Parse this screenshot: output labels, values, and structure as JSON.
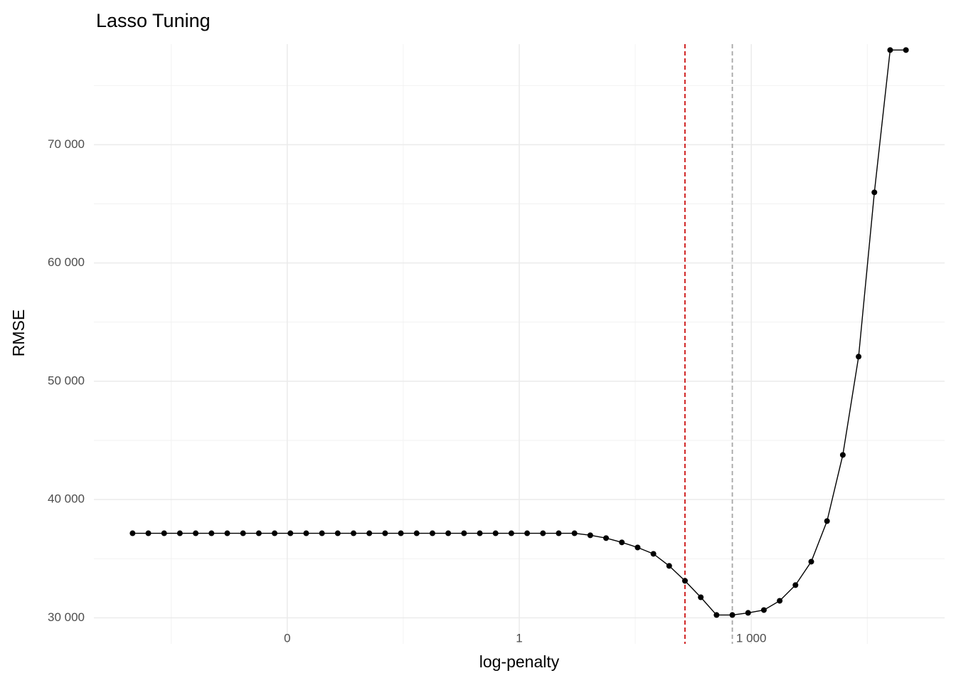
{
  "chart_data": {
    "type": "line",
    "title": "Lasso Tuning",
    "x_label": "log-penalty",
    "y_label": "RMSE",
    "x_scale": "log",
    "grid": true,
    "x": [
      1e-05,
      1.6e-05,
      2.56e-05,
      4.09e-05,
      6.55e-05,
      0.0001048,
      0.0001677,
      0.0002683,
      0.0004292,
      0.0006866,
      0.001099,
      0.001758,
      0.002812,
      0.004498,
      0.007197,
      0.01151,
      0.01842,
      0.02947,
      0.04715,
      0.07543,
      0.1207,
      0.1931,
      0.3089,
      0.4942,
      0.7906,
      1.265,
      2.024,
      3.237,
      5.179,
      8.286,
      13.26,
      21.21,
      33.93,
      54.29,
      86.85,
      138.9,
      222.3,
      355.6,
      569.0,
      910.3,
      1456,
      2330,
      3728,
      5964,
      9541,
      15264,
      24421,
      39069,
      62506,
      100000
    ],
    "series": [
      {
        "name": "RMSE",
        "color": "#000000",
        "values": [
          37150,
          37150,
          37150,
          37150,
          37150,
          37150,
          37150,
          37150,
          37150,
          37150,
          37150,
          37150,
          37150,
          37150,
          37150,
          37150,
          37150,
          37150,
          37150,
          37150,
          37150,
          37150,
          37150,
          37150,
          37150,
          37150,
          37150,
          37150,
          37150,
          36980,
          36740,
          36380,
          35950,
          35410,
          34390,
          33130,
          31740,
          30240,
          30240,
          30420,
          30660,
          31440,
          32770,
          34750,
          38180,
          43770,
          52080,
          65970,
          78000,
          78000
        ]
      }
    ],
    "vlines": [
      {
        "value": 138.9,
        "color": "#cc1111"
      },
      {
        "value": 569.0,
        "color": "#a6a6a6"
      }
    ],
    "xlim": [
      3.162e-06,
      316228
    ],
    "xticks": [
      {
        "value": 0.001,
        "label": "0"
      },
      1,
      {
        "value": 1000,
        "label": "1 000"
      }
    ],
    "xminor": [
      3.162e-05,
      0.03162,
      31.62,
      31623
    ],
    "ylim": [
      27800,
      78500
    ],
    "yticks": [
      {
        "value": 30000,
        "label": "30 000"
      },
      {
        "value": 40000,
        "label": "40 000"
      },
      {
        "value": 50000,
        "label": "50 000"
      },
      {
        "value": 60000,
        "label": "60 000"
      },
      {
        "value": 70000,
        "label": "70 000"
      }
    ],
    "yminor": [
      35000,
      45000,
      55000,
      65000,
      75000
    ]
  }
}
